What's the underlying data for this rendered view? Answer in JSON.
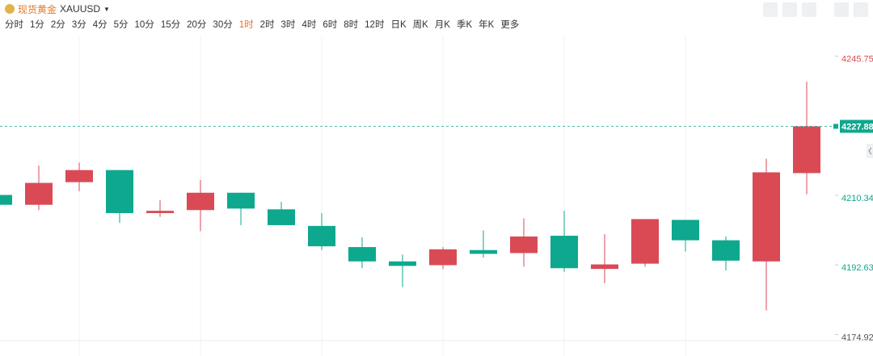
{
  "header": {
    "title": "现货黄金",
    "symbol": "XAUUSD",
    "intervals": [
      "分时",
      "1分",
      "2分",
      "3分",
      "4分",
      "5分",
      "10分",
      "15分",
      "20分",
      "30分",
      "1时",
      "2时",
      "3时",
      "4时",
      "6时",
      "8时",
      "12时",
      "日K",
      "周K",
      "月K",
      "季K",
      "年K",
      "更多"
    ],
    "active": 10
  },
  "chart_data": {
    "type": "candlestick",
    "open": [
      4210.43,
      4207.93,
      4213.69,
      4216.76,
      4205.82,
      4206.59,
      4211.0,
      4206.78,
      4202.56,
      4197.18,
      4193.54,
      4192.58,
      4196.42,
      4195.65,
      4200.06,
      4191.62,
      4192.96,
      4204.09,
      4198.91,
      4193.54,
      4215.99
    ],
    "high": [
      4210.43,
      4217.91,
      4218.68,
      4216.76,
      4209.08,
      4214.27,
      4211.0,
      4208.7,
      4205.82,
      4199.68,
      4195.27,
      4197.18,
      4201.41,
      4204.48,
      4206.4,
      4200.45,
      4204.29,
      4204.09,
      4199.87,
      4219.64,
      4239.22
    ],
    "low": [
      4207.93,
      4206.59,
      4211.39,
      4203.33,
      4204.86,
      4201.22,
      4202.75,
      4202.75,
      4196.42,
      4191.81,
      4187.01,
      4191.62,
      4194.5,
      4192.19,
      4190.85,
      4187.97,
      4192.19,
      4196.03,
      4191.23,
      4181.06,
      4210.62
    ],
    "close": [
      4207.93,
      4213.5,
      4216.76,
      4205.82,
      4206.4,
      4211.0,
      4206.97,
      4202.75,
      4197.38,
      4193.54,
      4192.39,
      4196.61,
      4195.46,
      4199.87,
      4191.81,
      4192.77,
      4204.29,
      4198.91,
      4193.73,
      4216.19,
      4227.88
    ],
    "up_color": "#d94a55",
    "down_color": "#0ea88e",
    "ylim": [
      4173.38,
      4251.8
    ],
    "yticks": [
      4174.92,
      4192.63,
      4210.34,
      4245.75
    ],
    "ytick_colors": [
      "#555555",
      "#0ea88e",
      "#0ea88e",
      "#d94a55"
    ],
    "last_price": 4227.88,
    "last_price_color": "#0ea88e"
  }
}
